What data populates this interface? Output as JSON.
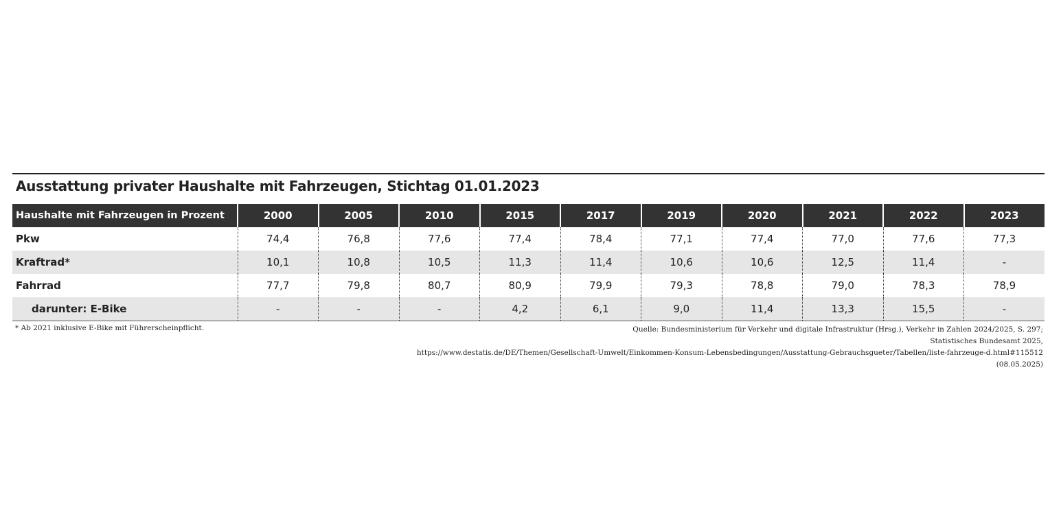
{
  "title": "Ausstattung privater Haushalte mit Fahrzeugen, Stichtag 01.01.2023",
  "table": {
    "header": [
      "Haushalte mit Fahrzeugen in Prozent",
      "2000",
      "2005",
      "2010",
      "2015",
      "2017",
      "2019",
      "2020",
      "2021",
      "2022",
      "2023"
    ],
    "rows": [
      [
        "Pkw",
        "74,4",
        "76,8",
        "77,6",
        "77,4",
        "78,4",
        "77,1",
        "77,4",
        "77,0",
        "77,6",
        "77,3"
      ],
      [
        "Kraftrad*",
        "10,1",
        "10,8",
        "10,5",
        "11,3",
        "11,4",
        "10,6",
        "10,6",
        "12,5",
        "11,4",
        "-"
      ],
      [
        "Fahrrad",
        "77,7",
        "79,8",
        "80,7",
        "80,9",
        "79,9",
        "79,3",
        "78,8",
        "79,0",
        "78,3",
        "78,9"
      ],
      [
        "darunter: E-Bike",
        "-",
        "-",
        "-",
        "4,2",
        "6,1",
        "9,0",
        "11,4",
        "13,3",
        "15,5",
        "-"
      ]
    ]
  },
  "footnote": "* Ab 2021 inklusive E-Bike mit Führerscheinpflicht.",
  "source": [
    "Quelle: Bundesministerium für Verkehr und digitale Infrastruktur (Hrsg.), Verkehr in Zahlen 2024/2025, S. 297;",
    "Statistisches Bundesamt 2025,",
    "https://www.destatis.de/DE/Themen/Gesellschaft-Umwelt/Einkommen-Konsum-Lebensbedingungen/Ausstattung-Gebrauchsgueter/Tabellen/liste-fahrzeuge-d.html#115512",
    "(08.05.2025)"
  ]
}
